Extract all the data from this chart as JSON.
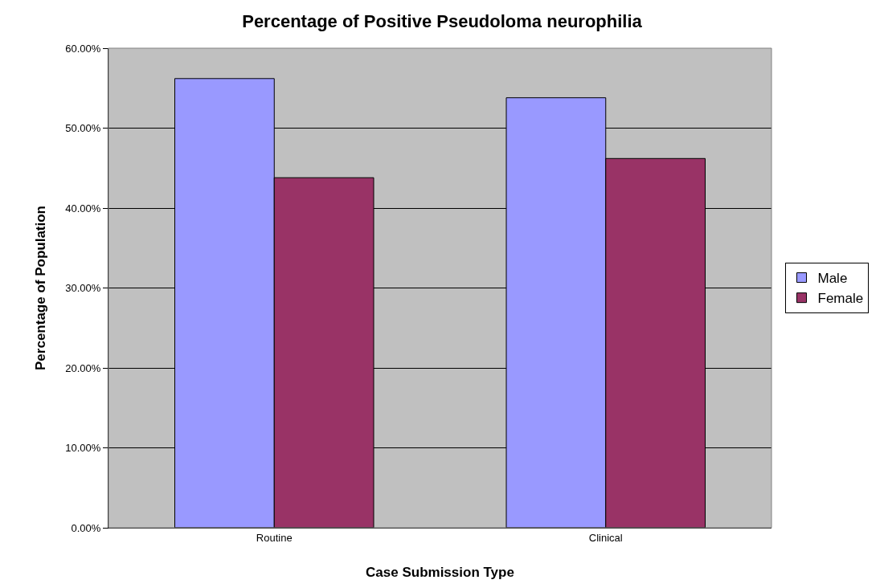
{
  "chart_data": {
    "type": "bar",
    "title": "Percentage of Positive Pseudoloma neurophilia",
    "xlabel": "Case Submission Type",
    "ylabel": "Percentage of Population",
    "categories": [
      "Routine",
      "Clinical"
    ],
    "series": [
      {
        "name": "Male",
        "color": "#9999ff",
        "values": [
          56.2,
          53.8
        ]
      },
      {
        "name": "Female",
        "color": "#993366",
        "values": [
          43.8,
          46.2
        ]
      }
    ],
    "ylim": [
      0,
      60
    ],
    "yticks": [
      {
        "value": 0,
        "label": "0.00%"
      },
      {
        "value": 10,
        "label": "10.00%"
      },
      {
        "value": 20,
        "label": "20.00%"
      },
      {
        "value": 30,
        "label": "30.00%"
      },
      {
        "value": 40,
        "label": "40.00%"
      },
      {
        "value": 50,
        "label": "50.00%"
      },
      {
        "value": 60,
        "label": "60.00%"
      }
    ],
    "grid": "y",
    "legend": "right"
  }
}
